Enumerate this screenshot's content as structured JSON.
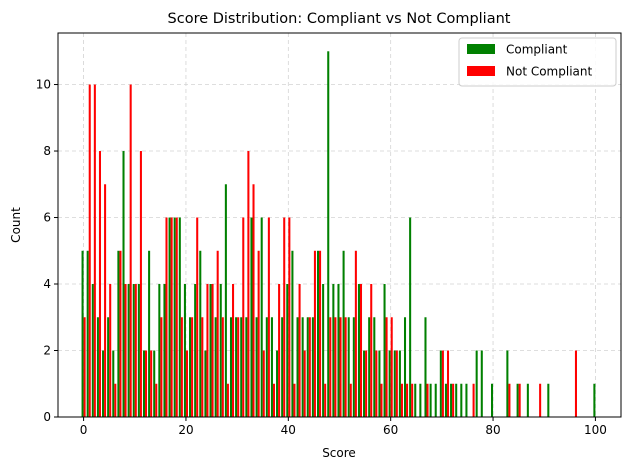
{
  "chart_data": {
    "type": "bar",
    "title": "Score Distribution: Compliant vs Not Compliant",
    "xlabel": "Score",
    "ylabel": "Count",
    "xlim": [
      -5,
      105
    ],
    "ylim": [
      0,
      11.55
    ],
    "xticks": [
      0,
      20,
      40,
      60,
      80,
      100
    ],
    "yticks": [
      0,
      2,
      4,
      6,
      8,
      10
    ],
    "grid": true,
    "legend_position": "top-right",
    "series": [
      {
        "name": "Compliant",
        "color": "#008000",
        "points": [
          [
            0,
            5
          ],
          [
            1,
            5
          ],
          [
            2,
            4
          ],
          [
            3,
            3
          ],
          [
            4,
            2
          ],
          [
            5,
            3
          ],
          [
            6,
            2
          ],
          [
            7,
            5
          ],
          [
            8,
            8
          ],
          [
            9,
            4
          ],
          [
            10,
            4
          ],
          [
            11,
            4
          ],
          [
            12,
            2
          ],
          [
            13,
            5
          ],
          [
            14,
            2
          ],
          [
            15,
            4
          ],
          [
            16,
            4
          ],
          [
            17,
            6
          ],
          [
            18,
            6
          ],
          [
            19,
            6
          ],
          [
            20,
            4
          ],
          [
            21,
            3
          ],
          [
            22,
            4
          ],
          [
            23,
            5
          ],
          [
            24,
            2
          ],
          [
            25,
            4
          ],
          [
            26,
            3
          ],
          [
            27,
            4
          ],
          [
            28,
            7
          ],
          [
            29,
            3
          ],
          [
            30,
            3
          ],
          [
            31,
            3
          ],
          [
            32,
            3
          ],
          [
            33,
            6
          ],
          [
            34,
            3
          ],
          [
            35,
            6
          ],
          [
            36,
            3
          ],
          [
            37,
            3
          ],
          [
            38,
            2
          ],
          [
            39,
            3
          ],
          [
            40,
            4
          ],
          [
            41,
            5
          ],
          [
            42,
            3
          ],
          [
            43,
            3
          ],
          [
            44,
            3
          ],
          [
            45,
            3
          ],
          [
            46,
            5
          ],
          [
            47,
            4
          ],
          [
            48,
            11
          ],
          [
            49,
            4
          ],
          [
            50,
            4
          ],
          [
            51,
            5
          ],
          [
            52,
            3
          ],
          [
            53,
            3
          ],
          [
            54,
            4
          ],
          [
            55,
            2
          ],
          [
            56,
            3
          ],
          [
            57,
            3
          ],
          [
            58,
            2
          ],
          [
            59,
            4
          ],
          [
            60,
            2
          ],
          [
            61,
            2
          ],
          [
            62,
            2
          ],
          [
            63,
            3
          ],
          [
            64,
            6
          ],
          [
            65,
            1
          ],
          [
            66,
            1
          ],
          [
            67,
            3
          ],
          [
            68,
            1
          ],
          [
            69,
            1
          ],
          [
            70,
            2
          ],
          [
            71,
            1
          ],
          [
            72,
            1
          ],
          [
            73,
            1
          ],
          [
            74,
            1
          ],
          [
            75,
            1
          ],
          [
            77,
            2
          ],
          [
            78,
            2
          ],
          [
            80,
            1
          ],
          [
            83,
            2
          ],
          [
            85,
            1
          ],
          [
            87,
            1
          ],
          [
            91,
            1
          ],
          [
            100,
            1
          ]
        ]
      },
      {
        "name": "Not Compliant",
        "color": "#ff0000",
        "points": [
          [
            0,
            3
          ],
          [
            1,
            10
          ],
          [
            2,
            10
          ],
          [
            3,
            8
          ],
          [
            4,
            7
          ],
          [
            5,
            4
          ],
          [
            6,
            1
          ],
          [
            7,
            5
          ],
          [
            8,
            4
          ],
          [
            9,
            10
          ],
          [
            10,
            4
          ],
          [
            11,
            8
          ],
          [
            12,
            2
          ],
          [
            13,
            2
          ],
          [
            14,
            1
          ],
          [
            15,
            3
          ],
          [
            16,
            6
          ],
          [
            17,
            6
          ],
          [
            18,
            6
          ],
          [
            19,
            3
          ],
          [
            20,
            2
          ],
          [
            21,
            3
          ],
          [
            22,
            6
          ],
          [
            23,
            3
          ],
          [
            24,
            4
          ],
          [
            25,
            4
          ],
          [
            26,
            5
          ],
          [
            27,
            3
          ],
          [
            28,
            1
          ],
          [
            29,
            4
          ],
          [
            30,
            3
          ],
          [
            31,
            6
          ],
          [
            32,
            8
          ],
          [
            33,
            7
          ],
          [
            34,
            5
          ],
          [
            35,
            2
          ],
          [
            36,
            6
          ],
          [
            37,
            1
          ],
          [
            38,
            4
          ],
          [
            39,
            6
          ],
          [
            40,
            6
          ],
          [
            41,
            1
          ],
          [
            42,
            4
          ],
          [
            43,
            2
          ],
          [
            44,
            3
          ],
          [
            45,
            5
          ],
          [
            46,
            5
          ],
          [
            47,
            1
          ],
          [
            48,
            3
          ],
          [
            49,
            3
          ],
          [
            50,
            3
          ],
          [
            51,
            3
          ],
          [
            52,
            1
          ],
          [
            53,
            5
          ],
          [
            54,
            4
          ],
          [
            55,
            2
          ],
          [
            56,
            4
          ],
          [
            57,
            2
          ],
          [
            58,
            1
          ],
          [
            59,
            3
          ],
          [
            60,
            3
          ],
          [
            61,
            2
          ],
          [
            62,
            1
          ],
          [
            63,
            1
          ],
          [
            64,
            1
          ],
          [
            67,
            1
          ],
          [
            70,
            2
          ],
          [
            71,
            2
          ],
          [
            72,
            1
          ],
          [
            76,
            1
          ],
          [
            83,
            1
          ],
          [
            85,
            1
          ],
          [
            89,
            1
          ],
          [
            96,
            2
          ]
        ]
      }
    ]
  }
}
